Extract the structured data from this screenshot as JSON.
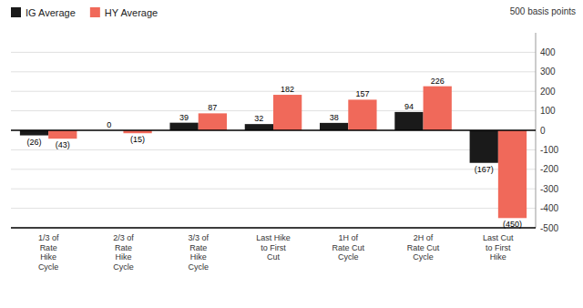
{
  "chart_data": {
    "type": "bar",
    "annotations": [
      "500 basis points"
    ],
    "categories": [
      "1/3 of\nRate\nHike\nCycle",
      "2/3 of\nRate\nHike\nCycle",
      "3/3 of\nRate\nHike\nCycle",
      "Last Hike\nto First\nCut",
      "1H of\nRate Cut\nCycle",
      "2H of\nRate Cut\nCycle",
      "Last Cut\nto First\nHike"
    ],
    "series": [
      {
        "name": "IG Average",
        "color": "#1a1a1a",
        "values": [
          -26,
          0,
          39,
          32,
          38,
          94,
          -167
        ],
        "value_labels": [
          "(26)",
          "0",
          "39",
          "32",
          "38",
          "94",
          "(167)"
        ]
      },
      {
        "name": "HY Average",
        "color": "#f0695a",
        "values": [
          -43,
          -15,
          87,
          182,
          157,
          226,
          -450
        ],
        "value_labels": [
          "(43)",
          "(15)",
          "87",
          "182",
          "157",
          "226",
          "(450)"
        ]
      }
    ],
    "ylim": [
      -500,
      500
    ],
    "yticks": [
      -500,
      -400,
      -300,
      -200,
      -100,
      0,
      100,
      200,
      300,
      400
    ],
    "grid": true,
    "legend": "upper left",
    "data_labels": true
  }
}
